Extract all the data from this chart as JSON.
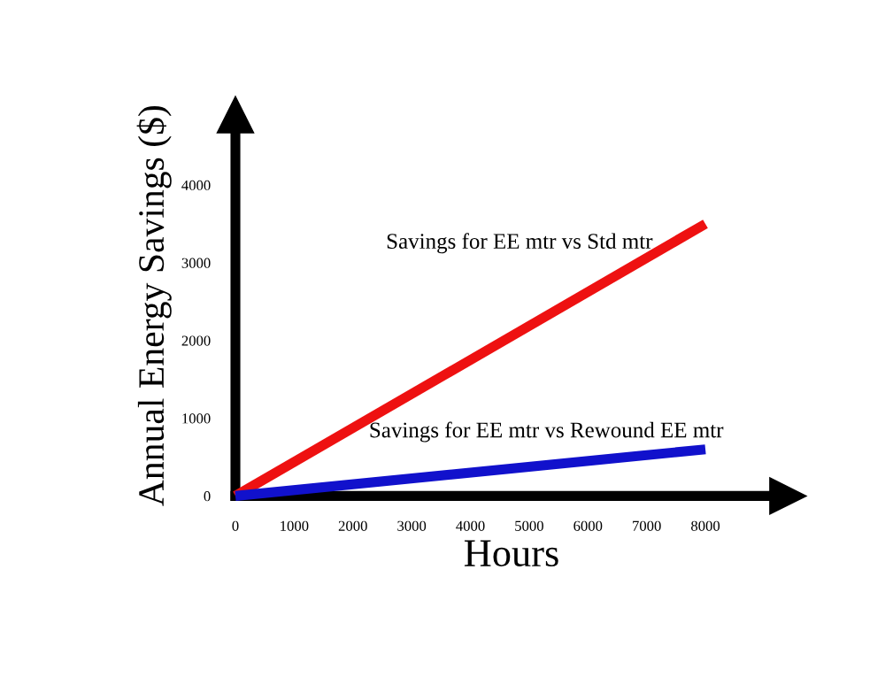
{
  "chart_data": {
    "type": "line",
    "xlabel": "Hours",
    "ylabel": "Annual Energy Savings ($)",
    "x": [
      0,
      8000
    ],
    "series": [
      {
        "name": "Savings for EE mtr vs Std mtr",
        "color": "#ee1111",
        "values": [
          0,
          3500
        ]
      },
      {
        "name": "Savings for EE mtr vs Rewound EE mtr",
        "color": "#1111cc",
        "values": [
          0,
          600
        ]
      }
    ],
    "xlim": [
      0,
      9400
    ],
    "ylim": [
      0,
      4900
    ],
    "xticks": [
      0,
      1000,
      2000,
      3000,
      4000,
      5000,
      6000,
      7000,
      8000
    ],
    "yticks": [
      0,
      1000,
      2000,
      3000,
      4000
    ],
    "grid": false,
    "legend": false,
    "marker": "none",
    "line_style": "solid"
  }
}
